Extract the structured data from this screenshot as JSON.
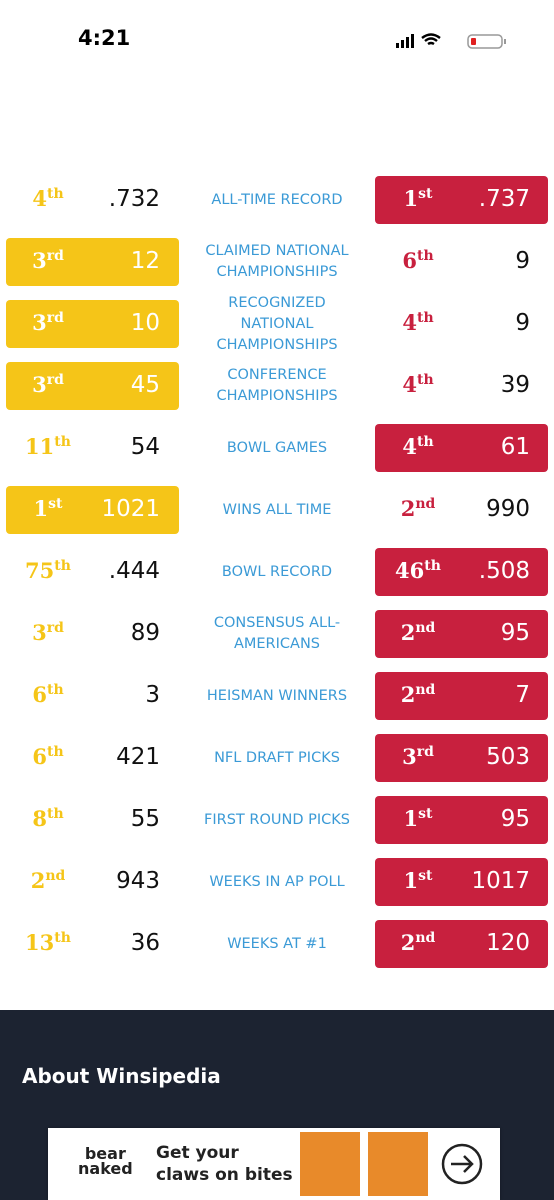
{
  "status_bar": {
    "time": "4:21"
  },
  "comparison": {
    "left_color": "#f5c518",
    "right_color": "#c8203e",
    "rows": [
      {
        "label": "ALL-TIME RECORD",
        "left": {
          "rank": "4",
          "suffix": "th",
          "value": ".732"
        },
        "right": {
          "rank": "1",
          "suffix": "st",
          "value": ".737"
        },
        "leader": "right"
      },
      {
        "label": "CLAIMED NATIONAL CHAMPIONSHIPS",
        "left": {
          "rank": "3",
          "suffix": "rd",
          "value": "12"
        },
        "right": {
          "rank": "6",
          "suffix": "th",
          "value": "9"
        },
        "leader": "left"
      },
      {
        "label": "RECOGNIZED NATIONAL CHAMPIONSHIPS",
        "left": {
          "rank": "3",
          "suffix": "rd",
          "value": "10"
        },
        "right": {
          "rank": "4",
          "suffix": "th",
          "value": "9"
        },
        "leader": "left"
      },
      {
        "label": "CONFERENCE CHAMPIONSHIPS",
        "left": {
          "rank": "3",
          "suffix": "rd",
          "value": "45"
        },
        "right": {
          "rank": "4",
          "suffix": "th",
          "value": "39"
        },
        "leader": "left"
      },
      {
        "label": "BOWL GAMES",
        "left": {
          "rank": "11",
          "suffix": "th",
          "value": "54"
        },
        "right": {
          "rank": "4",
          "suffix": "th",
          "value": "61"
        },
        "leader": "right"
      },
      {
        "label": "WINS ALL TIME",
        "left": {
          "rank": "1",
          "suffix": "st",
          "value": "1021"
        },
        "right": {
          "rank": "2",
          "suffix": "nd",
          "value": "990"
        },
        "leader": "left"
      },
      {
        "label": "BOWL RECORD",
        "left": {
          "rank": "75",
          "suffix": "th",
          "value": ".444"
        },
        "right": {
          "rank": "46",
          "suffix": "th",
          "value": ".508"
        },
        "leader": "right"
      },
      {
        "label": "CONSENSUS ALL-AMERICANS",
        "left": {
          "rank": "3",
          "suffix": "rd",
          "value": "89"
        },
        "right": {
          "rank": "2",
          "suffix": "nd",
          "value": "95"
        },
        "leader": "right"
      },
      {
        "label": "HEISMAN WINNERS",
        "left": {
          "rank": "6",
          "suffix": "th",
          "value": "3"
        },
        "right": {
          "rank": "2",
          "suffix": "nd",
          "value": "7"
        },
        "leader": "right"
      },
      {
        "label": "NFL DRAFT PICKS",
        "left": {
          "rank": "6",
          "suffix": "th",
          "value": "421"
        },
        "right": {
          "rank": "3",
          "suffix": "rd",
          "value": "503"
        },
        "leader": "right"
      },
      {
        "label": "FIRST ROUND PICKS",
        "left": {
          "rank": "8",
          "suffix": "th",
          "value": "55"
        },
        "right": {
          "rank": "1",
          "suffix": "st",
          "value": "95"
        },
        "leader": "right"
      },
      {
        "label": "WEEKS IN AP POLL",
        "left": {
          "rank": "2",
          "suffix": "nd",
          "value": "943"
        },
        "right": {
          "rank": "1",
          "suffix": "st",
          "value": "1017"
        },
        "leader": "right"
      },
      {
        "label": "WEEKS AT #1",
        "left": {
          "rank": "13",
          "suffix": "th",
          "value": "36"
        },
        "right": {
          "rank": "2",
          "suffix": "nd",
          "value": "120"
        },
        "leader": "right"
      }
    ]
  },
  "footer": {
    "title": "About Winsipedia"
  },
  "ad": {
    "brand_line1": "bear",
    "brand_line2": "naked",
    "headline": "Get your claws on bites"
  }
}
